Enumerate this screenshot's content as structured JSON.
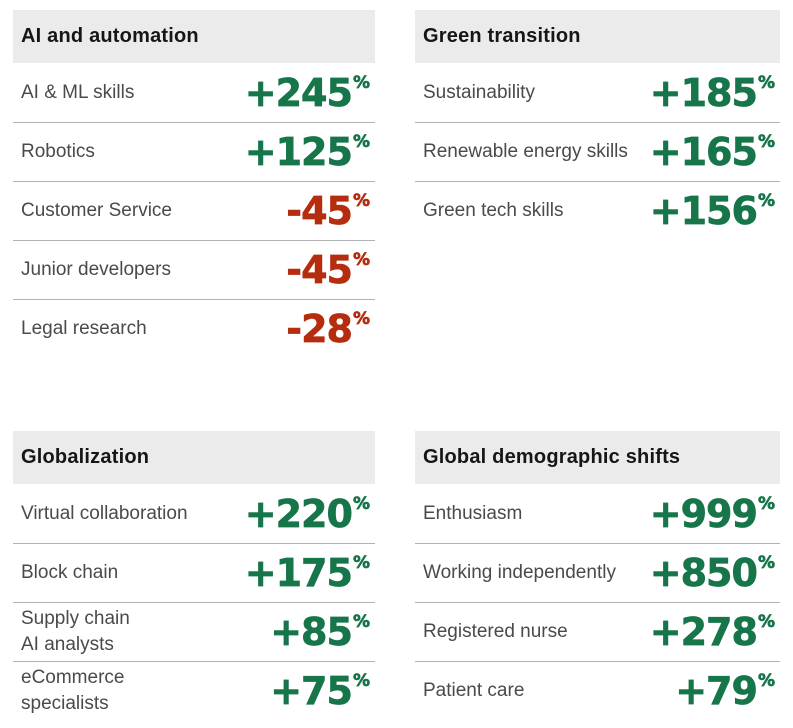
{
  "colors": {
    "positive": "#17754a",
    "negative": "#b52d0e",
    "header_bg": "#ebebeb",
    "title_text": "#161616",
    "label_text": "#4a4a4a",
    "divider": "#b2b2b2",
    "background": "#ffffff"
  },
  "panels": [
    {
      "title": "AI and automation",
      "rows": [
        {
          "label": "AI & ML skills",
          "value": "+245",
          "unit": "%",
          "trend": "positive"
        },
        {
          "label": "Robotics",
          "value": "+125",
          "unit": "%",
          "trend": "positive"
        },
        {
          "label": "Customer Service",
          "value": "-45",
          "unit": "%",
          "trend": "negative"
        },
        {
          "label": "Junior developers",
          "value": "-45",
          "unit": "%",
          "trend": "negative"
        },
        {
          "label": "Legal research",
          "value": "-28",
          "unit": "%",
          "trend": "negative"
        }
      ]
    },
    {
      "title": "Green transition",
      "rows": [
        {
          "label": "Sustainability",
          "value": "+185",
          "unit": "%",
          "trend": "positive"
        },
        {
          "label": "Renewable energy skills",
          "value": "+165",
          "unit": "%",
          "trend": "positive"
        },
        {
          "label": "Green tech skills",
          "value": "+156",
          "unit": "%",
          "trend": "positive"
        }
      ]
    },
    {
      "title": "Globalization",
      "rows": [
        {
          "label": "Virtual collaboration",
          "value": "+220",
          "unit": "%",
          "trend": "positive"
        },
        {
          "label": "Block chain",
          "value": "+175",
          "unit": "%",
          "trend": "positive"
        },
        {
          "label": "Supply chain\nAI analysts",
          "value": "+85",
          "unit": "%",
          "trend": "positive"
        },
        {
          "label": "eCommerce\nspecialists",
          "value": "+75",
          "unit": "%",
          "trend": "positive"
        }
      ]
    },
    {
      "title": "Global demographic shifts",
      "rows": [
        {
          "label": "Enthusiasm",
          "value": "+999",
          "unit": "%",
          "trend": "positive"
        },
        {
          "label": "Working independently",
          "value": "+850",
          "unit": "%",
          "trend": "positive"
        },
        {
          "label": "Registered nurse",
          "value": "+278",
          "unit": "%",
          "trend": "positive"
        },
        {
          "label": "Patient care",
          "value": "+79",
          "unit": "%",
          "trend": "positive"
        }
      ]
    }
  ],
  "chart_data": [
    {
      "type": "table",
      "title": "AI and automation",
      "categories": [
        "AI & ML skills",
        "Robotics",
        "Customer Service",
        "Junior developers",
        "Legal research"
      ],
      "values": [
        245,
        125,
        -45,
        -45,
        -28
      ],
      "unit": "%"
    },
    {
      "type": "table",
      "title": "Green transition",
      "categories": [
        "Sustainability",
        "Renewable energy skills",
        "Green tech skills"
      ],
      "values": [
        185,
        165,
        156
      ],
      "unit": "%"
    },
    {
      "type": "table",
      "title": "Globalization",
      "categories": [
        "Virtual collaboration",
        "Block chain",
        "Supply chain AI analysts",
        "eCommerce specialists"
      ],
      "values": [
        220,
        175,
        85,
        75
      ],
      "unit": "%"
    },
    {
      "type": "table",
      "title": "Global demographic shifts",
      "categories": [
        "Enthusiasm",
        "Working independently",
        "Registered nurse",
        "Patient care"
      ],
      "values": [
        999,
        850,
        278,
        79
      ],
      "unit": "%"
    }
  ]
}
